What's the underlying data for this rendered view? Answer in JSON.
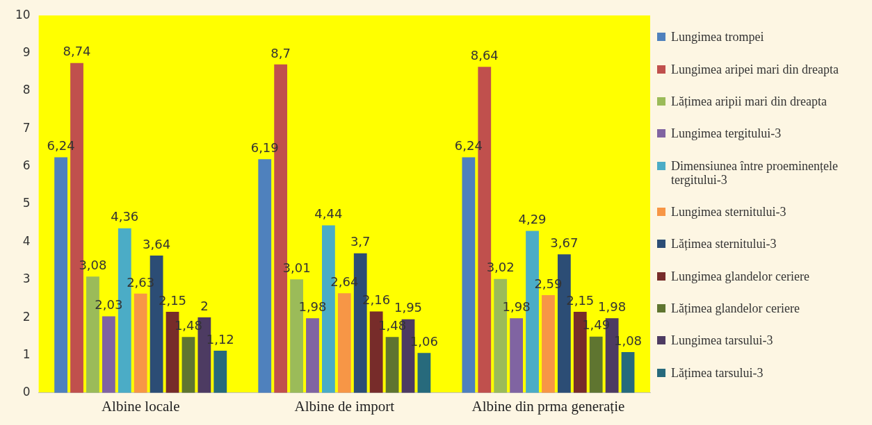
{
  "chart_data": {
    "type": "bar",
    "categories": [
      "Albine locale",
      "Albine de import",
      "Albine din prma generație"
    ],
    "series": [
      {
        "name": "Lungimea trompei",
        "color": "#4f81bd",
        "values": [
          6.24,
          6.19,
          6.24
        ],
        "value_labels": [
          "6,24",
          "6,19",
          "6,24"
        ]
      },
      {
        "name": "Lungimea aripei mari din dreapta",
        "color": "#c0504d",
        "values": [
          8.74,
          8.7,
          8.64
        ],
        "value_labels": [
          "8,74",
          "8,7",
          "8,64"
        ]
      },
      {
        "name": "Lățimea aripii mari din dreapta",
        "color": "#9bbb59",
        "values": [
          3.08,
          3.01,
          3.02
        ],
        "value_labels": [
          "3,08",
          "3,01",
          "3,02"
        ]
      },
      {
        "name": "Lungimea tergitului-3",
        "color": "#8064a2",
        "values": [
          2.03,
          1.98,
          1.98
        ],
        "value_labels": [
          "2,03",
          "1,98",
          "1,98"
        ]
      },
      {
        "name": "Dimensiunea între proeminențele tergitului-3",
        "color": "#4bacc6",
        "values": [
          4.36,
          4.44,
          4.29
        ],
        "value_labels": [
          "4,36",
          "4,44",
          "4,29"
        ]
      },
      {
        "name": "Lungimea sternitului-3",
        "color": "#f79646",
        "values": [
          2.63,
          2.64,
          2.59
        ],
        "value_labels": [
          "2,63",
          "2,64",
          "2,59"
        ]
      },
      {
        "name": "Lățimea sternitului-3",
        "color": "#2c4d75",
        "values": [
          3.64,
          3.7,
          3.67
        ],
        "value_labels": [
          "3,64",
          "3,7",
          "3,67"
        ]
      },
      {
        "name": "Lungimea glandelor ceriere",
        "color": "#772c2a",
        "values": [
          2.15,
          2.16,
          2.15
        ],
        "value_labels": [
          "2,15",
          "2,16",
          "2,15"
        ]
      },
      {
        "name": "Lățimea glandelor ceriere",
        "color": "#5f7530",
        "values": [
          1.48,
          1.48,
          1.49
        ],
        "value_labels": [
          "1,48",
          "1,48",
          "1,49"
        ]
      },
      {
        "name": "Lungimea tarsului-3",
        "color": "#4d3b62",
        "values": [
          2,
          1.95,
          1.98
        ],
        "value_labels": [
          "2",
          "1,95",
          "1,98"
        ]
      },
      {
        "name": "Lățimea tarsului-3",
        "color": "#276a7c",
        "values": [
          1.12,
          1.06,
          1.08
        ],
        "value_labels": [
          "1,12",
          "1,06",
          "1,08"
        ]
      }
    ],
    "ylim": [
      0,
      10
    ],
    "yticks": [
      0,
      1,
      2,
      3,
      4,
      5,
      6,
      7,
      8,
      9,
      10
    ],
    "grid": false,
    "legend": "right"
  }
}
